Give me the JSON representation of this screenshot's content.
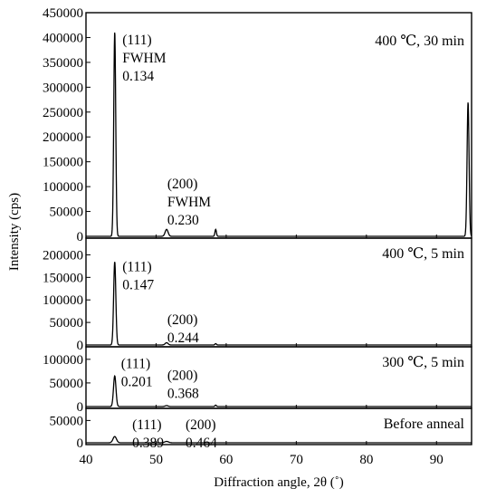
{
  "chart_data": {
    "type": "line",
    "xlabel": "Diffraction angle, 2θ (˚)",
    "ylabel": "Intensity (cps)",
    "xlim": [
      40,
      95
    ],
    "xticks": [
      40,
      50,
      60,
      70,
      80,
      90
    ],
    "panels": [
      {
        "condition": "400 ℃, 30 min",
        "ylim": [
          0,
          450000
        ],
        "yticks": [
          0,
          50000,
          100000,
          150000,
          200000,
          250000,
          300000,
          350000,
          400000,
          450000
        ],
        "ytick_labels": [
          "0",
          "50000",
          "100000",
          "150000",
          "200000",
          "250000",
          "300000",
          "350000",
          "400000",
          "450000"
        ],
        "peaks": [
          {
            "x": 44.1,
            "y": 412000,
            "w": 0.2
          },
          {
            "x": 51.5,
            "y": 14000,
            "w": 0.3
          },
          {
            "x": 58.5,
            "y": 14000,
            "w": 0.15
          },
          {
            "x": 94.5,
            "y": 270000,
            "w": 0.2
          }
        ],
        "annotations": [
          {
            "lines": [
              "(111)",
              "FWHM",
              "0.134"
            ],
            "x": 45.2,
            "y": 408000
          },
          {
            "lines": [
              "(200)",
              "FWHM",
              "0.230"
            ],
            "x": 51.6,
            "y": 118000
          }
        ]
      },
      {
        "condition": "400 ℃, 5 min",
        "ylim": [
          0,
          225000
        ],
        "yticks": [
          0,
          50000,
          100000,
          150000,
          200000
        ],
        "ytick_labels": [
          "0",
          "50000",
          "100000",
          "150000",
          "200000"
        ],
        "peaks": [
          {
            "x": 44.1,
            "y": 185000,
            "w": 0.22
          },
          {
            "x": 51.5,
            "y": 5000,
            "w": 0.3
          },
          {
            "x": 58.5,
            "y": 3000,
            "w": 0.15
          }
        ],
        "annotations": [
          {
            "lines": [
              "(111)",
              "0.147"
            ],
            "x": 45.2,
            "y": 188000
          },
          {
            "lines": [
              "(200)",
              "0.244"
            ],
            "x": 51.6,
            "y": 70000
          }
        ]
      },
      {
        "condition": "300 ℃, 5 min",
        "ylim": [
          0,
          115000
        ],
        "yticks": [
          0,
          50000,
          100000
        ],
        "ytick_labels": [
          "0",
          "50000",
          "100000"
        ],
        "peaks": [
          {
            "x": 44.1,
            "y": 65000,
            "w": 0.25
          },
          {
            "x": 51.5,
            "y": 2000,
            "w": 0.3
          },
          {
            "x": 58.5,
            "y": 3000,
            "w": 0.15
          }
        ],
        "annotations": [
          {
            "lines": [
              "(111)",
              "0.201"
            ],
            "x": 45.0,
            "y": 104000
          },
          {
            "lines": [
              "(200)",
              "0.368"
            ],
            "x": 51.6,
            "y": 80000
          }
        ]
      },
      {
        "condition": "Before anneal",
        "ylim": [
          0,
          65000
        ],
        "yticks": [
          0,
          50000
        ],
        "ytick_labels": [
          "0",
          "50000"
        ],
        "peaks": [
          {
            "x": 44.1,
            "y": 14000,
            "w": 0.35
          },
          {
            "x": 51.5,
            "y": 3000,
            "w": 0.4
          }
        ],
        "annotations": [
          {
            "lines": [
              "(111)",
              "0.389"
            ],
            "x": 46.6,
            "y": 55000
          },
          {
            "lines": [
              "(200)",
              "0.464"
            ],
            "x": 54.2,
            "y": 55000
          }
        ]
      }
    ]
  }
}
